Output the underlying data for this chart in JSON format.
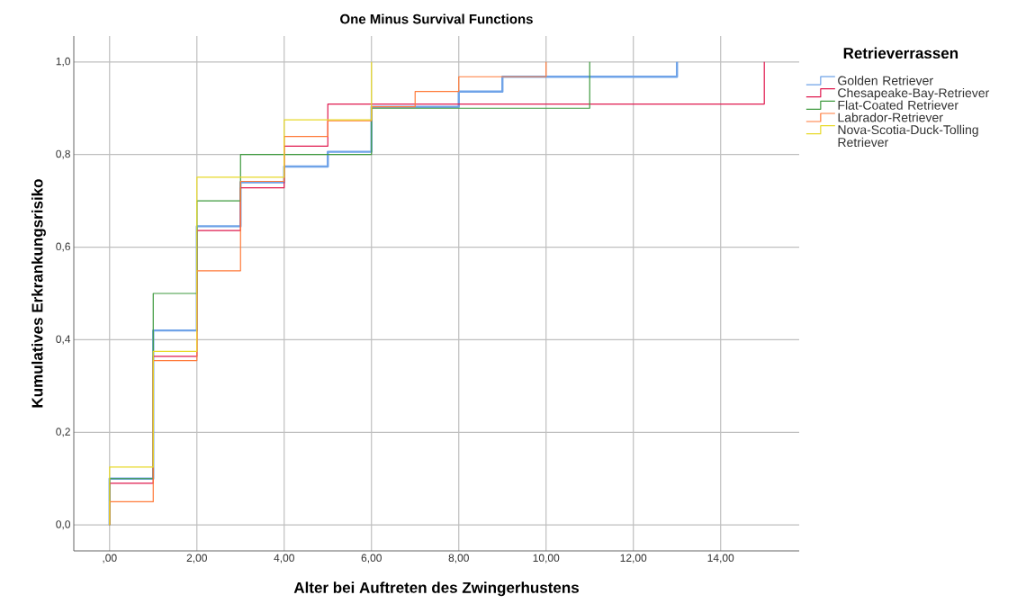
{
  "chart_data": {
    "type": "step",
    "title": "One Minus Survival Functions",
    "xlabel": "Alter bei Auftreten des Zwingerhustens",
    "ylabel": "Kumulatives Erkrankungsrisiko",
    "legend_title": "Retrieverrassen",
    "xlim": [
      -0.82,
      15.8
    ],
    "ylim": [
      -0.056,
      1.056
    ],
    "xticks": [
      {
        "value": 0,
        "label": ",00"
      },
      {
        "value": 2,
        "label": "2,00"
      },
      {
        "value": 4,
        "label": "4,00"
      },
      {
        "value": 6,
        "label": "6,00"
      },
      {
        "value": 8,
        "label": "8,00"
      },
      {
        "value": 10,
        "label": "10,00"
      },
      {
        "value": 12,
        "label": "12,00"
      },
      {
        "value": 14,
        "label": "14,00"
      }
    ],
    "yticks": [
      {
        "value": 0,
        "label": "0,0"
      },
      {
        "value": 0.2,
        "label": "0,2"
      },
      {
        "value": 0.4,
        "label": "0,4"
      },
      {
        "value": 0.6,
        "label": "0,6"
      },
      {
        "value": 0.8,
        "label": "0,8"
      },
      {
        "value": 1.0,
        "label": "1,0"
      }
    ],
    "grid": true,
    "legend": "right",
    "series": [
      {
        "name": "Golden Retriever",
        "color": "#6fa3e8",
        "x": [
          0,
          0,
          1,
          2,
          3,
          4,
          5,
          6,
          8,
          9,
          13
        ],
        "values": [
          0,
          0.1,
          0.42,
          0.645,
          0.74,
          0.774,
          0.806,
          0.903,
          0.936,
          0.968,
          1.0
        ]
      },
      {
        "name": "Chesapeake-Bay-Retriever",
        "color": "#e01a4f",
        "x": [
          0,
          0,
          1,
          2,
          3,
          4,
          5,
          15
        ],
        "values": [
          0,
          0.09,
          0.364,
          0.636,
          0.728,
          0.818,
          0.909,
          1.0
        ]
      },
      {
        "name": "Flat-Coated Retriever",
        "color": "#3f9a3f",
        "x": [
          0,
          0,
          1,
          2,
          3,
          6,
          11
        ],
        "values": [
          0,
          0.1,
          0.5,
          0.7,
          0.8,
          0.9,
          1.0
        ]
      },
      {
        "name": "Labrador-Retriever",
        "color": "#ff7b3a",
        "x": [
          0,
          0,
          1,
          2,
          3,
          4,
          5,
          6,
          7,
          8,
          10
        ],
        "values": [
          0,
          0.05,
          0.355,
          0.549,
          0.742,
          0.839,
          0.873,
          0.903,
          0.936,
          0.968,
          1.0
        ]
      },
      {
        "name": "Nova-Scotia-Duck-Tolling Retriever",
        "color": "#e8d92a",
        "x": [
          0,
          0,
          1,
          2,
          4,
          6
        ],
        "values": [
          0,
          0.125,
          0.375,
          0.751,
          0.875,
          1.0
        ]
      }
    ]
  }
}
